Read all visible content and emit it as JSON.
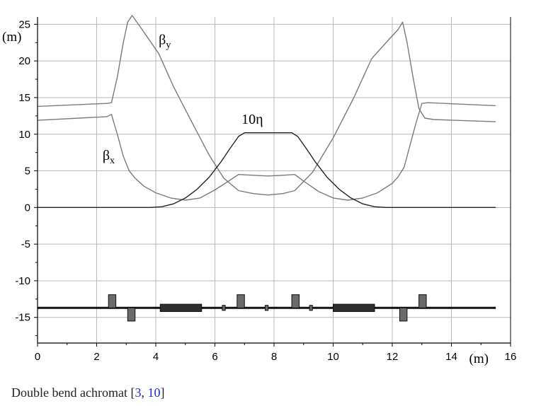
{
  "chart_data": {
    "type": "line",
    "xlabel": "(m)",
    "ylabel": "(m)",
    "xlim": [
      0,
      16
    ],
    "ylim": [
      -18.5,
      26
    ],
    "x_ticks": [
      0,
      2,
      4,
      6,
      8,
      10,
      12,
      14,
      16
    ],
    "y_ticks": [
      25,
      20,
      15,
      10,
      5,
      0,
      -5,
      -10,
      -15
    ],
    "grid": true,
    "series": [
      {
        "name": "βy",
        "color": "#7a7a7a",
        "x": [
          0,
          2.35,
          2.5,
          2.7,
          2.9,
          3.05,
          3.2,
          3.5,
          4.1,
          4.6,
          5.2,
          5.8,
          6.3,
          6.8,
          7.3,
          7.8,
          8.3,
          8.7,
          9.3,
          10.0,
          10.7,
          11.3,
          11.9,
          12.2,
          12.35,
          12.5,
          12.7,
          12.9,
          13.1,
          13.4,
          15.5
        ],
        "y": [
          13.8,
          14.2,
          14.3,
          17.8,
          22.5,
          25.3,
          26.2,
          24.5,
          21.0,
          16.5,
          11.8,
          7.2,
          4.0,
          2.3,
          1.9,
          1.7,
          1.9,
          2.3,
          4.8,
          9.5,
          15.0,
          20.3,
          23.0,
          24.3,
          25.3,
          22.5,
          17.8,
          13.5,
          12.2,
          12.0,
          11.7
        ]
      },
      {
        "name": "βx",
        "color": "#7a7a7a",
        "x": [
          0,
          2.35,
          2.5,
          2.7,
          2.9,
          3.1,
          3.3,
          3.6,
          4.0,
          4.5,
          5.0,
          5.5,
          6.0,
          6.5,
          6.8,
          7.3,
          7.8,
          8.3,
          8.7,
          9.0,
          9.5,
          10.0,
          10.5,
          11.0,
          11.5,
          12.0,
          12.2,
          12.4,
          12.6,
          12.8,
          13.0,
          13.2,
          15.5
        ],
        "y": [
          11.9,
          12.4,
          12.7,
          10.0,
          7.0,
          5.0,
          4.0,
          2.9,
          2.0,
          1.3,
          1.0,
          1.3,
          2.4,
          3.7,
          4.5,
          4.4,
          4.3,
          4.4,
          4.5,
          3.6,
          2.2,
          1.3,
          1.0,
          1.3,
          2.0,
          3.3,
          4.2,
          5.5,
          8.5,
          11.5,
          14.2,
          14.3,
          13.9
        ]
      },
      {
        "name": "10η",
        "color": "#222222",
        "x": [
          0,
          3.8,
          4.2,
          4.6,
          5.0,
          5.4,
          5.8,
          6.2,
          6.5,
          6.8,
          7.0,
          8.6,
          8.8,
          9.1,
          9.4,
          9.8,
          10.2,
          10.6,
          11.0,
          11.4,
          11.8,
          15.5
        ],
        "y": [
          0,
          0,
          0.1,
          0.5,
          1.3,
          2.5,
          4.1,
          6.2,
          8.0,
          9.7,
          10.2,
          10.2,
          9.7,
          8.0,
          6.2,
          4.1,
          2.5,
          1.3,
          0.5,
          0.1,
          0,
          0
        ]
      }
    ],
    "annotations": [
      {
        "text_main": "β",
        "text_sub": "y",
        "x": 4.1,
        "y": 22.3
      },
      {
        "text_main": "β",
        "text_sub": "x",
        "x": 2.2,
        "y": 6.5
      },
      {
        "text_main": "10η",
        "text_sub": "",
        "x": 6.9,
        "y": 11.4
      }
    ],
    "lattice": {
      "beamline_y": -13.7,
      "beamline_x": [
        0,
        15.5
      ],
      "elements": [
        {
          "type": "quad-focusing",
          "x0": 2.4,
          "x1": 2.65,
          "y_top": -11.9,
          "y_bottom": -13.7
        },
        {
          "type": "quad-defocusing",
          "x0": 3.05,
          "x1": 3.3,
          "y_top": -13.7,
          "y_bottom": -15.5
        },
        {
          "type": "dipole",
          "x0": 4.15,
          "x1": 5.55,
          "y_top": -13.2,
          "y_bottom": -14.2
        },
        {
          "type": "sextupole",
          "x0": 6.25,
          "x1": 6.35,
          "y_top": -13.35,
          "y_bottom": -14.05
        },
        {
          "type": "quad-focusing",
          "x0": 6.75,
          "x1": 7.0,
          "y_top": -11.9,
          "y_bottom": -13.7
        },
        {
          "type": "sextupole",
          "x0": 7.7,
          "x1": 7.8,
          "y_top": -13.35,
          "y_bottom": -14.05
        },
        {
          "type": "quad-focusing",
          "x0": 8.6,
          "x1": 8.85,
          "y_top": -11.9,
          "y_bottom": -13.7
        },
        {
          "type": "sextupole",
          "x0": 9.2,
          "x1": 9.3,
          "y_top": -13.35,
          "y_bottom": -14.05
        },
        {
          "type": "dipole",
          "x0": 10.0,
          "x1": 11.4,
          "y_top": -13.2,
          "y_bottom": -14.2
        },
        {
          "type": "quad-defocusing",
          "x0": 12.25,
          "x1": 12.5,
          "y_top": -13.7,
          "y_bottom": -15.5
        },
        {
          "type": "quad-focusing",
          "x0": 12.9,
          "x1": 13.15,
          "y_top": -11.9,
          "y_bottom": -13.7
        }
      ]
    }
  },
  "caption": {
    "text": "Double bend achromat [",
    "ref1": "3",
    "sep": ", ",
    "ref2": "10",
    "close": "]"
  }
}
